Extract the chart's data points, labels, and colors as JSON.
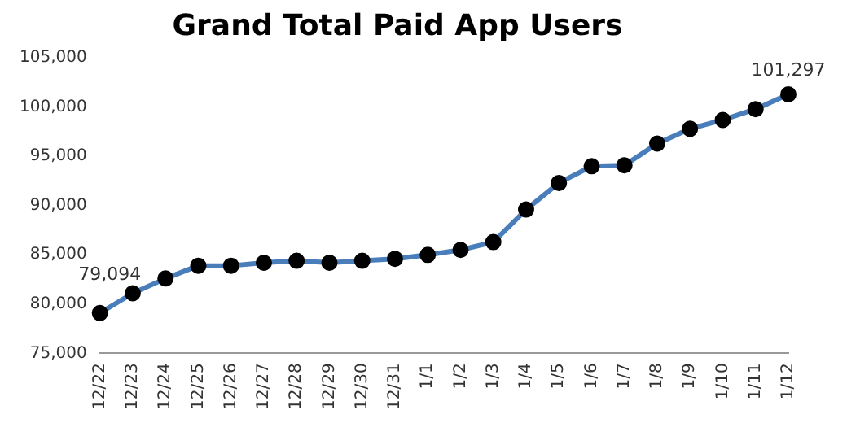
{
  "chart_data": {
    "type": "line",
    "title": "Grand Total Paid App Users",
    "categories": [
      "12/22",
      "12/23",
      "12/24",
      "12/25",
      "12/26",
      "12/27",
      "12/28",
      "12/29",
      "12/30",
      "12/31",
      "1/1",
      "1/2",
      "1/3",
      "1/4",
      "1/5",
      "1/6",
      "1/7",
      "1/8",
      "1/9",
      "1/10",
      "1/11",
      "1/12"
    ],
    "series": [
      {
        "color": "#4a7ebb",
        "values": [
          79094,
          81100,
          82600,
          83900,
          83900,
          84200,
          84400,
          84200,
          84400,
          84600,
          85000,
          85500,
          86300,
          89600,
          92300,
          94000,
          94100,
          96300,
          97800,
          98700,
          99800,
          101297
        ],
        "value_labels": [
          "79,094",
          null,
          null,
          null,
          null,
          null,
          null,
          null,
          null,
          null,
          null,
          null,
          null,
          null,
          null,
          null,
          null,
          null,
          null,
          null,
          null,
          "101,297"
        ]
      }
    ],
    "ylim": [
      75000,
      105000
    ],
    "yticks": [
      {
        "value": 75000,
        "label": "75,000"
      },
      {
        "value": 80000,
        "label": "80,000"
      },
      {
        "value": 85000,
        "label": "85,000"
      },
      {
        "value": 90000,
        "label": "90,000"
      },
      {
        "value": 95000,
        "label": "95,000"
      },
      {
        "value": 100000,
        "label": "100,000"
      },
      {
        "value": 105000,
        "label": "105,000"
      }
    ],
    "grid": false,
    "legend": false,
    "marker": "circle",
    "line_style": "solid"
  }
}
